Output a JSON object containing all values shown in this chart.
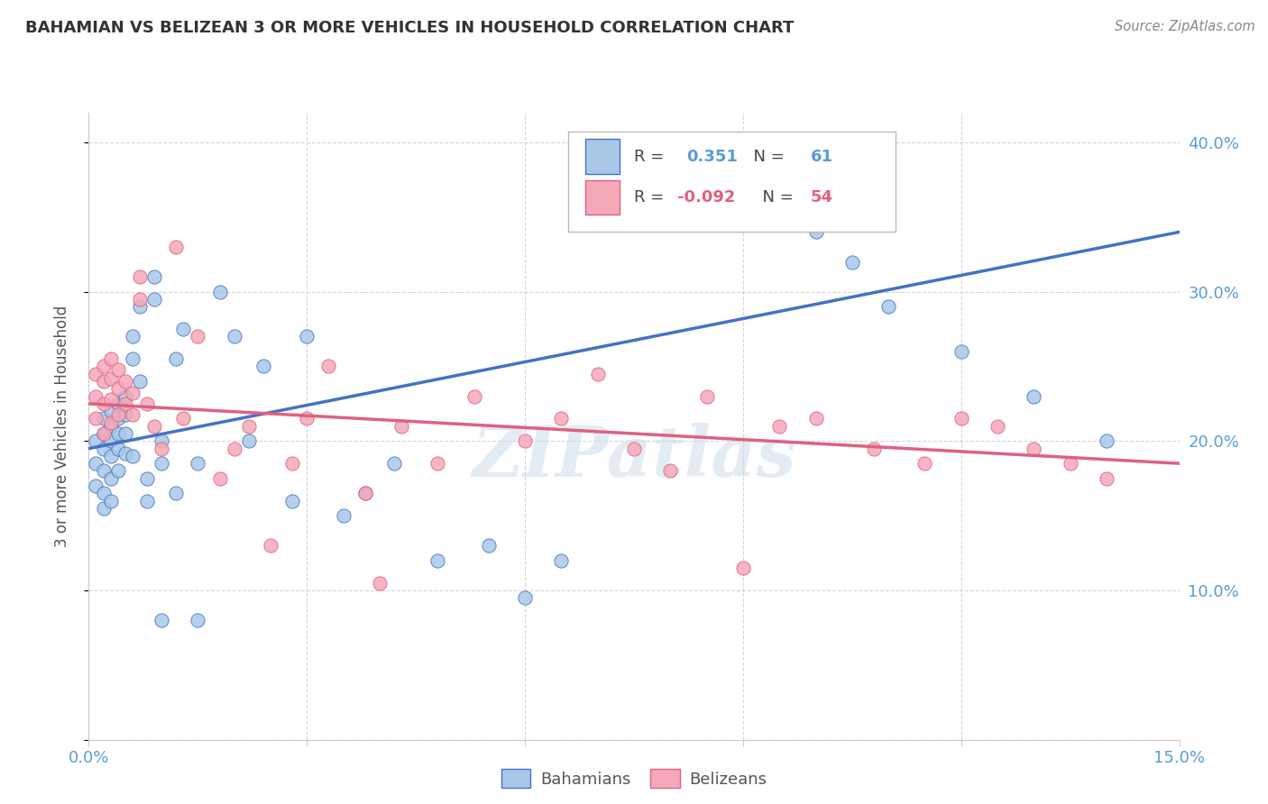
{
  "title": "BAHAMIAN VS BELIZEAN 3 OR MORE VEHICLES IN HOUSEHOLD CORRELATION CHART",
  "source": "Source: ZipAtlas.com",
  "ylabel": "3 or more Vehicles in Household",
  "xlim": [
    0.0,
    0.15
  ],
  "ylim": [
    0.0,
    0.42
  ],
  "xticks": [
    0.0,
    0.03,
    0.06,
    0.09,
    0.12,
    0.15
  ],
  "xtick_labels": [
    "0.0%",
    "",
    "",
    "",
    "",
    "15.0%"
  ],
  "yticks": [
    0.0,
    0.1,
    0.2,
    0.3,
    0.4
  ],
  "ytick_labels_right": [
    "",
    "10.0%",
    "20.0%",
    "30.0%",
    "40.0%"
  ],
  "legend_labels": [
    "Bahamians",
    "Belizeans"
  ],
  "bahamian_color": "#a8c8e8",
  "belizean_color": "#f4a8b8",
  "bahamian_line_color": "#4472c4",
  "belizean_line_color": "#e06080",
  "R_bahamian": "0.351",
  "N_bahamian": "61",
  "R_belizean": "-0.092",
  "N_belizean": "54",
  "watermark": "ZIPatlas",
  "bahamian_x": [
    0.001,
    0.001,
    0.001,
    0.002,
    0.002,
    0.002,
    0.002,
    0.002,
    0.002,
    0.003,
    0.003,
    0.003,
    0.003,
    0.003,
    0.003,
    0.004,
    0.004,
    0.004,
    0.004,
    0.004,
    0.005,
    0.005,
    0.005,
    0.005,
    0.006,
    0.006,
    0.006,
    0.007,
    0.007,
    0.008,
    0.008,
    0.009,
    0.009,
    0.01,
    0.01,
    0.01,
    0.012,
    0.012,
    0.013,
    0.015,
    0.015,
    0.018,
    0.02,
    0.022,
    0.024,
    0.028,
    0.03,
    0.035,
    0.038,
    0.042,
    0.048,
    0.055,
    0.06,
    0.065,
    0.095,
    0.1,
    0.105,
    0.11,
    0.12,
    0.13,
    0.14
  ],
  "bahamian_y": [
    0.2,
    0.185,
    0.17,
    0.215,
    0.205,
    0.195,
    0.18,
    0.165,
    0.155,
    0.22,
    0.21,
    0.2,
    0.19,
    0.175,
    0.16,
    0.225,
    0.215,
    0.205,
    0.195,
    0.18,
    0.23,
    0.218,
    0.205,
    0.192,
    0.27,
    0.255,
    0.19,
    0.29,
    0.24,
    0.175,
    0.16,
    0.31,
    0.295,
    0.2,
    0.185,
    0.08,
    0.255,
    0.165,
    0.275,
    0.185,
    0.08,
    0.3,
    0.27,
    0.2,
    0.25,
    0.16,
    0.27,
    0.15,
    0.165,
    0.185,
    0.12,
    0.13,
    0.095,
    0.12,
    0.35,
    0.34,
    0.32,
    0.29,
    0.26,
    0.23,
    0.2
  ],
  "belizean_x": [
    0.001,
    0.001,
    0.001,
    0.002,
    0.002,
    0.002,
    0.002,
    0.003,
    0.003,
    0.003,
    0.003,
    0.004,
    0.004,
    0.004,
    0.005,
    0.005,
    0.006,
    0.006,
    0.007,
    0.007,
    0.008,
    0.009,
    0.01,
    0.012,
    0.013,
    0.015,
    0.018,
    0.02,
    0.022,
    0.025,
    0.028,
    0.03,
    0.033,
    0.038,
    0.04,
    0.043,
    0.048,
    0.053,
    0.06,
    0.065,
    0.07,
    0.075,
    0.08,
    0.085,
    0.09,
    0.095,
    0.1,
    0.108,
    0.115,
    0.12,
    0.125,
    0.13,
    0.135,
    0.14
  ],
  "belizean_y": [
    0.245,
    0.23,
    0.215,
    0.25,
    0.24,
    0.225,
    0.205,
    0.255,
    0.242,
    0.228,
    0.212,
    0.248,
    0.235,
    0.218,
    0.24,
    0.225,
    0.232,
    0.218,
    0.31,
    0.295,
    0.225,
    0.21,
    0.195,
    0.33,
    0.215,
    0.27,
    0.175,
    0.195,
    0.21,
    0.13,
    0.185,
    0.215,
    0.25,
    0.165,
    0.105,
    0.21,
    0.185,
    0.23,
    0.2,
    0.215,
    0.245,
    0.195,
    0.18,
    0.23,
    0.115,
    0.21,
    0.215,
    0.195,
    0.185,
    0.215,
    0.21,
    0.195,
    0.185,
    0.175
  ]
}
